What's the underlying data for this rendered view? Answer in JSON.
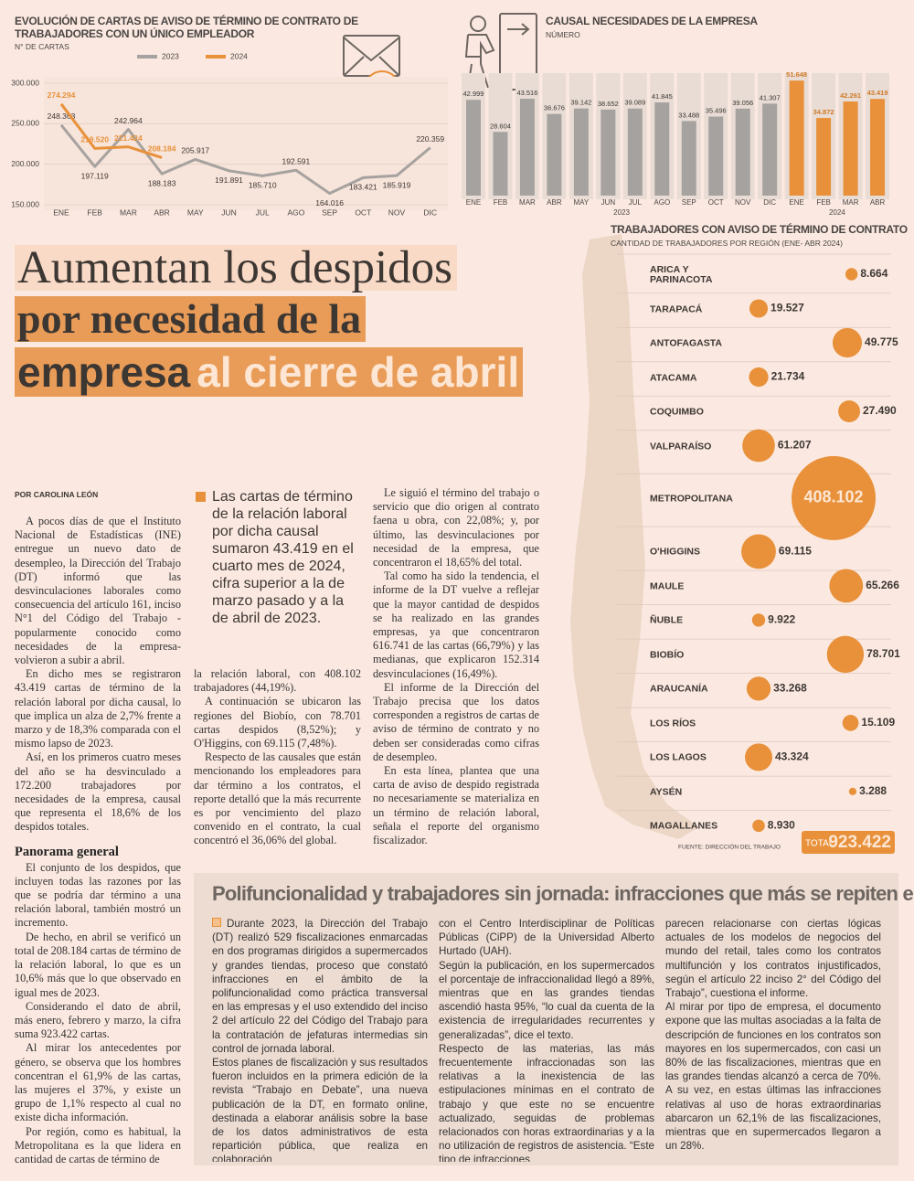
{
  "chart_data": [
    {
      "type": "line",
      "title": "EVOLUCIÓN DE CARTAS DE AVISO DE TÉRMINO DE CONTRATO DE TRABAJADORES CON UN ÚNICO EMPLEADOR",
      "subtitle": "N° DE CARTAS",
      "categories": [
        "ENE",
        "FEB",
        "MAR",
        "ABR",
        "MAY",
        "JUN",
        "JUL",
        "AGO",
        "SEP",
        "OCT",
        "NOV",
        "DIC"
      ],
      "series": [
        {
          "name": "2023",
          "color": "#a6a29f",
          "values": [
            248363,
            197119,
            242964,
            188183,
            205917,
            191891,
            185710,
            192591,
            164016,
            183421,
            185919,
            220359
          ],
          "value_labels": [
            "248.363",
            "197.119",
            "242.964",
            "188.183",
            "205.917",
            "191.891",
            "185.710",
            "192.591",
            "164.016",
            "183.421",
            "185.919",
            "220.359"
          ]
        },
        {
          "name": "2024",
          "color": "#e8913a",
          "values": [
            274294,
            219520,
            221424,
            208184,
            null,
            null,
            null,
            null,
            null,
            null,
            null,
            null
          ],
          "value_labels": [
            "274.294",
            "219.520",
            "221.424",
            "208.184",
            null,
            null,
            null,
            null,
            null,
            null,
            null,
            null
          ]
        }
      ],
      "ylim": [
        150000,
        300000
      ],
      "yticks": [
        {
          "value": 150000,
          "label": "150.000"
        },
        {
          "value": 200000,
          "label": "200.000"
        },
        {
          "value": 250000,
          "label": "250.000"
        },
        {
          "value": 300000,
          "label": "300.000"
        }
      ],
      "grid": true
    },
    {
      "type": "bar",
      "title": "CAUSAL NECESIDADES DE LA EMPRESA",
      "subtitle": "NÚMERO",
      "categories": [
        "ENE",
        "FEB",
        "MAR",
        "ABR",
        "MAY",
        "JUN",
        "JUL",
        "AGO",
        "SEP",
        "OCT",
        "NOV",
        "DIC",
        "ENE",
        "FEB",
        "MAR",
        "ABR"
      ],
      "series": [
        {
          "name": "2023",
          "color": "#a6a29f",
          "values": [
            42999,
            28604,
            43516,
            36676,
            39142,
            38652,
            39089,
            41845,
            33488,
            35496,
            39056,
            41307,
            null,
            null,
            null,
            null
          ],
          "value_labels": [
            "42.999",
            "28.604",
            "43.516",
            "36.676",
            "39.142",
            "38.652",
            "39.089",
            "41.845",
            "33.488",
            "35.496",
            "39.056",
            "41.307",
            null,
            null,
            null,
            null
          ]
        },
        {
          "name": "2024",
          "color": "#e8913a",
          "values": [
            null,
            null,
            null,
            null,
            null,
            null,
            null,
            null,
            null,
            null,
            null,
            null,
            51648,
            34872,
            42261,
            43419
          ],
          "value_labels": [
            null,
            null,
            null,
            null,
            null,
            null,
            null,
            null,
            null,
            null,
            null,
            null,
            "51.648",
            "34.872",
            "42.261",
            "43.419"
          ]
        }
      ],
      "ylim": [
        0,
        55000
      ]
    },
    {
      "type": "bubble",
      "title": "TRABAJADORES CON AVISO DE TÉRMINO DE CONTRATO",
      "subtitle": "CANTIDAD DE TRABAJADORES POR REGIÓN (ENE- ABR 2024)",
      "categories": [
        "ARICA Y PARINACOTA",
        "TARAPACÁ",
        "ANTOFAGASTA",
        "ATACAMA",
        "COQUIMBO",
        "VALPARAÍSO",
        "METROPOLITANA",
        "O'HIGGINS",
        "MAULE",
        "ÑUBLE",
        "BIOBÍO",
        "ARAUCANÍA",
        "LOS RÍOS",
        "LOS LAGOS",
        "AYSÉN",
        "MAGALLANES"
      ],
      "values": [
        8664,
        19527,
        49775,
        21734,
        27490,
        61207,
        408102,
        69115,
        65266,
        9922,
        78701,
        33268,
        15109,
        43324,
        3288,
        8930
      ],
      "value_labels": [
        "8.664",
        "19.527",
        "49.775",
        "21.734",
        "27.490",
        "61.207",
        "408.102",
        "69.115",
        "65.266",
        "9.922",
        "78.701",
        "33.268",
        "15.109",
        "43.324",
        "3.288",
        "8.930"
      ],
      "color": "#e8913a",
      "source": "FUENTE: DIRECCIÓN DEL TRABAJO",
      "total_title": "TOTAL",
      "total": 923422,
      "total_label": "923.422"
    }
  ],
  "headline": {
    "line1": "Aumentan los despidos",
    "line2": "por necesidad de la",
    "line3": "empresa",
    "line3_accent": "al cierre de abril"
  },
  "article": {
    "byline": "POR CAROLINA LEÓN",
    "col1": [
      "A pocos días de que el Instituto Nacional de Estadísticas (INE) entregue un nuevo dato de desempleo, la Dirección del Trabajo (DT) informó que las desvinculaciones laborales como consecuencia del artículo 161, inciso N°1 del Código del Trabajo -popularmente conocido como necesidades de la empresa- volvieron a subir a abril.",
      "En dicho mes se registraron 43.419 cartas de término de la relación laboral por dicha causal, lo que implica un alza de 2,7% frente a marzo y de 18,3% comparada con el mismo lapso de 2023.",
      "Así, en los primeros cuatro meses del año se ha desvinculado a 172.200 trabajadores por necesidades de la empresa, causal que representa el 18,6% de los despidos totales."
    ],
    "subhead": "Panorama general",
    "col1_cont": [
      "El conjunto de los despidos, que incluyen todas las razones por las que se podría dar término a una relación laboral, también mostró un incremento.",
      "De hecho, en abril se verificó un total de 208.184 cartas de término de la relación laboral, lo que es un 10,6% más que lo que observado en igual mes de 2023.",
      "Considerando el dato de abril, más enero, febrero y marzo, la cifra suma 923.422 cartas.",
      "Al mirar los antecedentes por género, se observa que los hombres concentran el 61,9% de las cartas, las mujeres el 37%, y existe un grupo de 1,1% respecto al cual no existe dicha información.",
      "Por región, como es habitual, la Metropolitana es la que lidera en cantidad de cartas de término de"
    ],
    "pull_quote": "Las cartas de término de la relación laboral por dicha causal sumaron 43.419 en el cuarto mes de 2024, cifra superior a la de marzo pasado y a la de abril de 2023.",
    "col2": [
      "la relación laboral, con 408.102 trabajadores (44,19%).",
      "A continuación se ubicaron las regiones del Biobío, con 78.701 cartas despidos (8,52%); y O'Higgins, con 69.115 (7,48%).",
      "Respecto de las causales que están mencionando los empleadores para dar término a los contratos, el reporte detalló que la más recurrente es por vencimiento del plazo convenido en el contrato, la cual concentró el 36,06% del global."
    ],
    "col3": [
      "Le siguió el término del trabajo o servicio que dio origen al contrato faena u obra, con 22,08%; y, por último, las desvinculaciones por necesidad de la empresa, que concentraron el 18,65% del total.",
      "Tal como ha sido la tendencia, el informe de la DT vuelve a reflejar que la mayor cantidad de despidos se ha realizado en las grandes empresas, ya que concentraron 616.741 de las cartas (66,79%) y las medianas, que explicaron 152.314 desvinculaciones (16,49%).",
      "El informe de la Dirección del Trabajo precisa que los datos corresponden a registros de cartas de aviso de término de contrato y no deben ser consideradas como cifras de desempleo.",
      "En esta línea, plantea que una carta de aviso de despido registrada no necesariamente se materializa en un término de relación laboral, señala el reporte del organismo fiscalizador."
    ]
  },
  "sidebar": {
    "title": "Polifuncionalidad y trabajadores sin jornada: infracciones que más se repiten en el retail",
    "columns": [
      [
        "Durante 2023, la Dirección del Trabajo (DT) realizó 529 fiscalizaciones enmarcadas en dos programas dirigidos a supermercados y grandes tiendas, proceso que constató infracciones en el ámbito de la polifuncionalidad como práctica transversal en las empresas y el uso extendido del inciso 2 del artículo 22 del Código del Trabajo para la contratación de jefaturas intermedias sin control de jornada laboral.",
        "Estos planes de fiscalización y sus resultados fueron incluidos en la primera edición de la revista “Trabajo en Debate”, una nueva publicación de la DT, en formato online, destinada a elaborar análisis sobre la base de los datos administrativos de esta repartición pública, que realiza en colaboración"
      ],
      [
        "con el Centro Interdisciplinar de Políticas Públicas (CiPP) de la Universidad Alberto Hurtado (UAH).",
        "Según la publicación, en los supermercados el porcentaje de infraccionalidad llegó a 89%, mientras que en las grandes tiendas ascendió hasta 95%, “lo cual da cuenta de la existencia de irregularidades recurrentes y generalizadas”, dice el texto.",
        "Respecto de las materias, las más frecuentemente infraccionadas son las relativas a la inexistencia de las estipulaciones mínimas en el contrato de trabajo y que este no se encuentre actualizado, seguidas de problemas relacionados con horas extraordinarias y a la no utilización de registros de asistencia. “Este tipo de infracciones"
      ],
      [
        "parecen relacionarse con ciertas lógicas actuales de los modelos de negocios del mundo del retail, tales como los contratos multifunción y los contratos injustificados, según el artículo 22 inciso 2° del Código del Trabajo”, cuestiona el informe.",
        "Al mirar por tipo de empresa, el documento expone que las multas asociadas a la falta de descripción de funciones en los contratos son mayores en los supermercados, con casi un 80% de las fiscalizaciones, mientras que en las grandes tiendas alcanzó a cerca de 70%. A su vez, en estas últimas las infracciones relativas al uso de horas extraordinarias abarcaron un 62,1% de las fiscalizaciones, mientras que en supermercados llegaron a un 28%."
      ]
    ]
  }
}
